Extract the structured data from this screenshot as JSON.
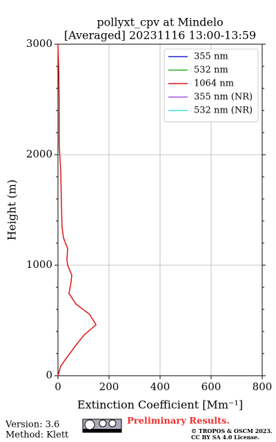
{
  "chart_data": {
    "type": "line",
    "title": "pollyxt_cpv at Mindelo",
    "subtitle": "[Averaged] 20231116 13:00-13:59",
    "xlabel": "Extinction Coefficient [Mm⁻¹]",
    "ylabel": "Height (m)",
    "y": [
      0,
      87,
      150,
      275,
      370,
      460,
      555,
      650,
      745,
      840,
      912,
      1000,
      1056,
      1150,
      1245,
      1340,
      1525,
      1840,
      2090,
      2460,
      2775,
      3000
    ],
    "series": [
      {
        "name": "355 nm",
        "color": "#1f1fd6",
        "values": [
          null,
          null,
          null,
          null,
          null,
          null,
          null,
          null,
          null,
          null,
          null,
          null,
          null,
          null,
          null,
          null,
          null,
          null,
          null,
          null,
          null,
          null
        ]
      },
      {
        "name": "532 nm",
        "color": "#22b022",
        "values": [
          null,
          null,
          null,
          null,
          null,
          null,
          null,
          null,
          null,
          null,
          null,
          null,
          null,
          null,
          null,
          null,
          null,
          null,
          null,
          null,
          null,
          null
        ]
      },
      {
        "name": "1064 nm",
        "color": "#e01010",
        "values": [
          0,
          11,
          30,
          70,
          103,
          149,
          124,
          70,
          43,
          51,
          54,
          38,
          35,
          38,
          22,
          16,
          14,
          11,
          5,
          5,
          3,
          0
        ]
      },
      {
        "name": "355 nm (NR)",
        "color": "#a050e0",
        "values": [
          null,
          null,
          null,
          null,
          null,
          null,
          null,
          null,
          null,
          null,
          null,
          null,
          null,
          null,
          null,
          null,
          null,
          null,
          null,
          null,
          null,
          null
        ]
      },
      {
        "name": "532 nm (NR)",
        "color": "#40e0d0",
        "values": [
          null,
          null,
          null,
          null,
          null,
          null,
          null,
          null,
          null,
          null,
          null,
          null,
          null,
          null,
          null,
          null,
          null,
          null,
          null,
          null,
          null,
          null
        ]
      }
    ],
    "xlim": [
      0,
      800
    ],
    "xticks": [
      0,
      200,
      400,
      600,
      800
    ],
    "ylim": [
      0,
      3000
    ],
    "yticks": [
      0,
      1000,
      2000,
      3000
    ],
    "yminor_ticks": [
      200,
      400,
      600,
      800,
      1200,
      1400,
      1600,
      1800,
      2200,
      2400,
      2600,
      2800
    ],
    "grid": true,
    "legend": "upper right"
  },
  "footer": {
    "version": "Version: 3.6",
    "method": "Method: Klett",
    "notice": "Preliminary Results.",
    "copyright": "© TROPOS & OSCM 2023.",
    "license": "CC BY SA 4.0 License."
  }
}
